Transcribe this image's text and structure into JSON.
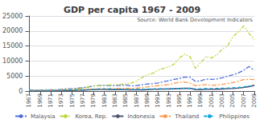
{
  "chart_data": {
    "type": "line",
    "title": "GDP per capita 1967 - 2009",
    "annotation": "Source: World Bank Development Indicators",
    "x": [
      1967,
      1968,
      1969,
      1970,
      1971,
      1972,
      1973,
      1974,
      1975,
      1976,
      1977,
      1978,
      1979,
      1980,
      1981,
      1982,
      1983,
      1984,
      1985,
      1986,
      1987,
      1988,
      1989,
      1990,
      1991,
      1992,
      1993,
      1994,
      1995,
      1996,
      1997,
      1998,
      1999,
      2000,
      2001,
      2002,
      2003,
      2004,
      2005,
      2006,
      2007,
      2008,
      2009
    ],
    "series": [
      {
        "name": "Malaysia",
        "line_style": "dashdot",
        "values": [
          330,
          355,
          385,
          395,
          410,
          445,
          575,
          760,
          810,
          930,
          1100,
          1350,
          1700,
          1850,
          1900,
          1850,
          1800,
          1900,
          2000,
          1700,
          1800,
          2100,
          2350,
          2450,
          2700,
          3100,
          3400,
          3900,
          4200,
          4600,
          4600,
          3200,
          3400,
          4000,
          3900,
          4000,
          4400,
          4900,
          5400,
          6000,
          6900,
          8200,
          6900
        ]
      },
      {
        "name": "Korea, Rep.",
        "line_style": "dashdotdot",
        "values": [
          160,
          180,
          210,
          250,
          290,
          330,
          420,
          540,
          620,
          800,
          1000,
          1360,
          1700,
          1750,
          1900,
          2000,
          2100,
          2200,
          2350,
          2680,
          3320,
          4460,
          5340,
          5890,
          6880,
          7550,
          8000,
          8960,
          11000,
          12300,
          11400,
          7600,
          9400,
          11500,
          11000,
          12000,
          14000,
          15000,
          18100,
          19700,
          21700,
          19200,
          17100
        ]
      },
      {
        "name": "Indonesia",
        "line_style": "solid",
        "values": [
          65,
          70,
          80,
          85,
          90,
          100,
          130,
          180,
          210,
          260,
          310,
          380,
          490,
          520,
          530,
          510,
          490,
          490,
          480,
          400,
          390,
          440,
          500,
          580,
          620,
          670,
          700,
          760,
          830,
          900,
          950,
          460,
          480,
          580,
          590,
          620,
          680,
          780,
          880,
          1000,
          1200,
          1500,
          1900
        ]
      },
      {
        "name": "Thailand",
        "line_style": "dashdot",
        "values": [
          210,
          230,
          250,
          270,
          290,
          320,
          390,
          450,
          450,
          490,
          550,
          640,
          680,
          740,
          780,
          760,
          790,
          860,
          880,
          870,
          960,
          1130,
          1360,
          1610,
          1800,
          1950,
          2160,
          2560,
          2920,
          3020,
          2600,
          1800,
          2000,
          2100,
          1900,
          2000,
          2200,
          2500,
          2800,
          3300,
          3800,
          3900,
          3800
        ]
      },
      {
        "name": "Philippines",
        "line_style": "dashed",
        "values": [
          210,
          210,
          220,
          220,
          220,
          230,
          280,
          360,
          410,
          430,
          480,
          540,
          620,
          690,
          770,
          770,
          680,
          620,
          580,
          530,
          580,
          620,
          680,
          730,
          760,
          780,
          780,
          840,
          870,
          900,
          870,
          760,
          780,
          870,
          850,
          890,
          950,
          1000,
          1100,
          1200,
          1400,
          1700,
          1700
        ]
      }
    ],
    "xlim": [
      1967,
      2009
    ],
    "xticks": [
      1967,
      1969,
      1971,
      1973,
      1975,
      1977,
      1979,
      1981,
      1983,
      1985,
      1987,
      1989,
      1991,
      1993,
      1995,
      1997,
      1999,
      2001,
      2003,
      2005,
      2007,
      2009
    ],
    "ylim": [
      0,
      25000
    ],
    "yticks": [
      0,
      5000,
      10000,
      15000,
      20000,
      25000
    ],
    "grid": true,
    "legend": "bottom"
  }
}
